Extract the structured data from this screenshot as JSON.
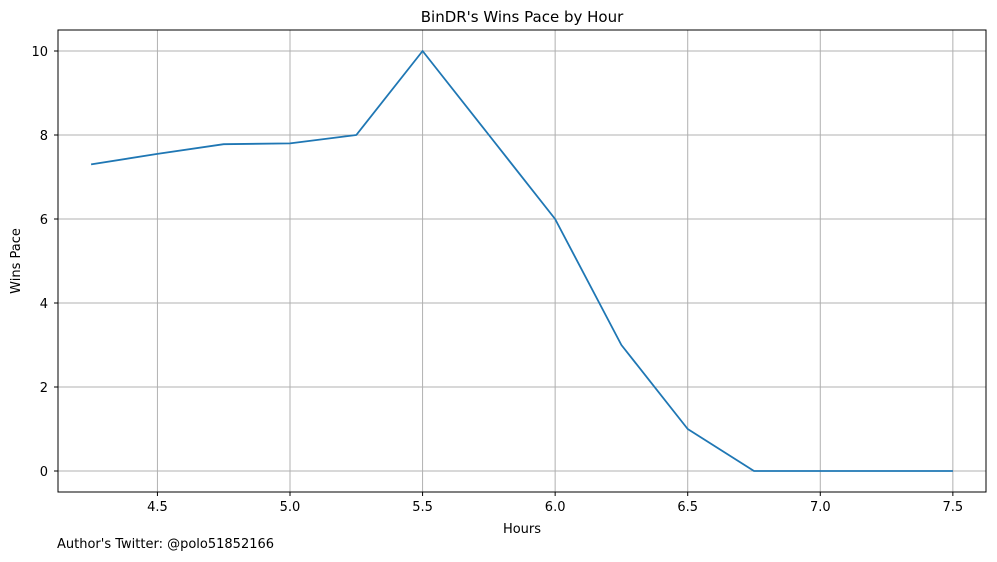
{
  "chart_data": {
    "type": "line",
    "title": "BinDR's Wins Pace by Hour",
    "xlabel": "Hours",
    "ylabel": "Wins Pace",
    "xlim": [
      4.125,
      7.625
    ],
    "ylim": [
      -0.5,
      10.5
    ],
    "xticks": [
      4.5,
      5.0,
      5.5,
      6.0,
      6.5,
      7.0,
      7.5
    ],
    "xtick_labels": [
      "4.5",
      "5.0",
      "5.5",
      "6.0",
      "6.5",
      "7.0",
      "7.5"
    ],
    "yticks": [
      0,
      2,
      4,
      6,
      8,
      10
    ],
    "ytick_labels": [
      "0",
      "2",
      "4",
      "6",
      "8",
      "10"
    ],
    "grid": true,
    "series": [
      {
        "name": "Wins Pace",
        "color": "#1f77b4",
        "x": [
          4.25,
          4.5,
          4.75,
          5.0,
          5.25,
          5.5,
          5.75,
          6.0,
          6.25,
          6.5,
          6.75,
          7.0,
          7.25,
          7.5
        ],
        "values": [
          7.3,
          7.55,
          7.78,
          7.8,
          8.0,
          10.0,
          8.0,
          6.0,
          3.0,
          1.0,
          0.0,
          0.0,
          0.0,
          0.0
        ]
      }
    ]
  },
  "footer": {
    "note": "Author's Twitter: @polo51852166"
  }
}
